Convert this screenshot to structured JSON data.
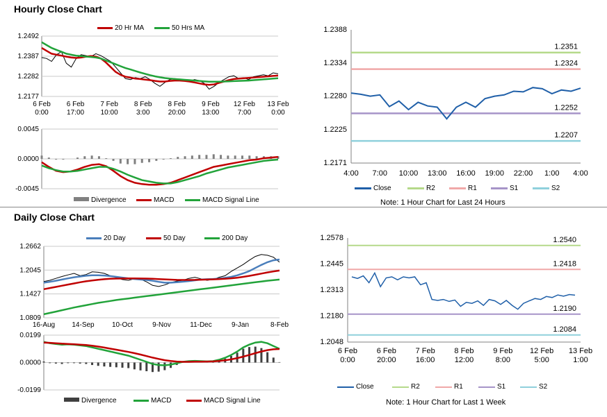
{
  "sections": {
    "hourly_title": "Hourly Close Chart",
    "daily_title": "Daily Close Chart"
  },
  "chart_data": [
    {
      "id": "hourly_price",
      "type": "line",
      "legend": [
        "20 Hr MA",
        "50 Hrs MA"
      ],
      "legend_colors": [
        "#c00000",
        "#22a33a"
      ],
      "yticks": [
        "1.2492",
        "1.2387",
        "1.2282",
        "1.2177"
      ],
      "ylim": [
        1.2177,
        1.2492
      ],
      "xticks": [
        [
          "6 Feb",
          "0:00"
        ],
        [
          "6 Feb",
          "17:00"
        ],
        [
          "7 Feb",
          "10:00"
        ],
        [
          "8 Feb",
          "3:00"
        ],
        [
          "8 Feb",
          "20:00"
        ],
        [
          "9 Feb",
          "13:00"
        ],
        [
          "12 Feb",
          "7:00"
        ],
        [
          "13 Feb",
          "0:00"
        ]
      ],
      "series": [
        {
          "name": "Close",
          "color": "#000000",
          "values": [
            1.238,
            1.2375,
            1.236,
            1.2395,
            1.241,
            1.235,
            1.233,
            1.2375,
            1.2395,
            1.239,
            1.2385,
            1.24,
            1.239,
            1.2375,
            1.236,
            1.233,
            1.23,
            1.227,
            1.2265,
            1.2275,
            1.227,
            1.228,
            1.2265,
            1.2245,
            1.223,
            1.225,
            1.2265,
            1.227,
            1.2265,
            1.226,
            1.2255,
            1.2265,
            1.226,
            1.2245,
            1.2215,
            1.223,
            1.225,
            1.2265,
            1.228,
            1.2285,
            1.227,
            1.2275,
            1.2265,
            1.228,
            1.2285,
            1.229,
            1.2285,
            1.23,
            1.2295
          ]
        },
        {
          "name": "20 Hr MA",
          "color": "#c00000",
          "values": [
            1.243,
            1.2415,
            1.24,
            1.2395,
            1.239,
            1.2385,
            1.238,
            1.2378,
            1.238,
            1.2385,
            1.2388,
            1.2385,
            1.2375,
            1.2355,
            1.233,
            1.2305,
            1.229,
            1.228,
            1.2275,
            1.227,
            1.2268,
            1.2265,
            1.2262,
            1.2258,
            1.2255,
            1.2255,
            1.2258,
            1.226,
            1.226,
            1.2258,
            1.2255,
            1.225,
            1.2245,
            1.224,
            1.2238,
            1.224,
            1.2248,
            1.2255,
            1.2262,
            1.2268,
            1.227,
            1.2272,
            1.2274,
            1.2276,
            1.2278,
            1.228,
            1.2282,
            1.2284,
            1.2286
          ]
        },
        {
          "name": "50 Hrs MA",
          "color": "#22a33a",
          "values": [
            1.246,
            1.2445,
            1.243,
            1.242,
            1.241,
            1.24,
            1.2395,
            1.239,
            1.2388,
            1.2385,
            1.2383,
            1.238,
            1.2375,
            1.2365,
            1.2355,
            1.2345,
            1.2335,
            1.2325,
            1.2318,
            1.231,
            1.2302,
            1.2295,
            1.2288,
            1.2282,
            1.2277,
            1.2273,
            1.227,
            1.2268,
            1.2266,
            1.2264,
            1.2262,
            1.226,
            1.2258,
            1.2256,
            1.2254,
            1.2254,
            1.2254,
            1.2255,
            1.2256,
            1.2257,
            1.2258,
            1.2259,
            1.226,
            1.2262,
            1.2264,
            1.2266,
            1.2268,
            1.227,
            1.2272
          ]
        }
      ]
    },
    {
      "id": "hourly_macd",
      "type": "line",
      "legend": [
        "Divergence",
        "MACD",
        "MACD Signal Line"
      ],
      "legend_colors": [
        "#808080",
        "#c00000",
        "#22a33a"
      ],
      "yticks": [
        "0.0045",
        "0.0000",
        "-0.0045"
      ],
      "ylim": [
        -0.0045,
        0.0045
      ],
      "series": [
        {
          "name": "MACD",
          "color": "#c00000",
          "values": [
            -0.0005,
            -0.0012,
            -0.0018,
            -0.002,
            -0.0019,
            -0.0016,
            -0.0012,
            -0.0009,
            -0.0008,
            -0.0011,
            -0.0018,
            -0.0026,
            -0.0032,
            -0.0036,
            -0.0038,
            -0.0039,
            -0.0039,
            -0.0038,
            -0.0036,
            -0.0032,
            -0.0028,
            -0.0024,
            -0.002,
            -0.0016,
            -0.0012,
            -0.001,
            -0.0008,
            -0.0006,
            -0.0004,
            -0.0002,
            -0.0001,
            0.0001,
            0.0002,
            0.0003
          ]
        },
        {
          "name": "MACD Signal Line",
          "color": "#22a33a",
          "values": [
            -0.001,
            -0.0014,
            -0.0017,
            -0.0019,
            -0.0019,
            -0.0018,
            -0.0016,
            -0.0014,
            -0.0012,
            -0.0012,
            -0.0015,
            -0.0019,
            -0.0024,
            -0.0028,
            -0.0032,
            -0.0034,
            -0.0036,
            -0.0037,
            -0.0037,
            -0.0035,
            -0.0032,
            -0.0029,
            -0.0026,
            -0.0022,
            -0.0019,
            -0.0016,
            -0.0013,
            -0.0011,
            -0.0009,
            -0.0007,
            -0.0005,
            -0.0003,
            -0.0002,
            -0.0001
          ]
        }
      ]
    },
    {
      "id": "hourly_24h",
      "type": "line",
      "yticks": [
        "1.2388",
        "1.2334",
        "1.2280",
        "1.2225",
        "1.2171"
      ],
      "ylim": [
        1.2171,
        1.2388
      ],
      "xticks": [
        "4:00",
        "7:00",
        "10:00",
        "13:00",
        "16:00",
        "19:00",
        "22:00",
        "1:00",
        "4:00"
      ],
      "levels": [
        {
          "name": "R2",
          "value": 1.2351,
          "label": "1.2351",
          "color": "#b5d98a"
        },
        {
          "name": "R1",
          "value": 1.2324,
          "label": "1.2324",
          "color": "#f0a8a8"
        },
        {
          "name": "S1",
          "value": 1.2252,
          "label": "1.2252",
          "color": "#a694c8"
        },
        {
          "name": "S2",
          "value": 1.2207,
          "label": "1.2207",
          "color": "#8fd0dc"
        }
      ],
      "series": [
        {
          "name": "Close",
          "color": "#1f5fa8",
          "values": [
            1.2285,
            1.2283,
            1.228,
            1.2282,
            1.2263,
            1.2272,
            1.2258,
            1.227,
            1.2264,
            1.2262,
            1.2243,
            1.2262,
            1.227,
            1.2262,
            1.2276,
            1.228,
            1.2282,
            1.2288,
            1.2287,
            1.2294,
            1.2292,
            1.2284,
            1.229,
            1.2288,
            1.2293
          ]
        }
      ],
      "legend": [
        "Close",
        "R2",
        "R1",
        "S1",
        "S2"
      ],
      "note": "Note: 1 Hour Chart for Last 24 Hours"
    },
    {
      "id": "daily_price",
      "type": "line",
      "legend": [
        "20 Day",
        "50 Day",
        "200 Day"
      ],
      "legend_colors": [
        "#4a7ebb",
        "#c00000",
        "#22a33a"
      ],
      "yticks": [
        "1.2662",
        "1.2045",
        "1.1427",
        "1.0809"
      ],
      "ylim": [
        1.0809,
        1.2662
      ],
      "xticks": [
        "16-Aug",
        "14-Sep",
        "10-Oct",
        "9-Nov",
        "11-Dec",
        "9-Jan",
        "8-Feb"
      ],
      "series": [
        {
          "name": "Close",
          "color": "#000000",
          "values": [
            1.175,
            1.178,
            1.183,
            1.188,
            1.192,
            1.196,
            1.19,
            1.193,
            1.2,
            1.199,
            1.196,
            1.19,
            1.185,
            1.18,
            1.178,
            1.182,
            1.181,
            1.174,
            1.165,
            1.162,
            1.166,
            1.172,
            1.176,
            1.178,
            1.183,
            1.186,
            1.182,
            1.178,
            1.18,
            1.186,
            1.19,
            1.201,
            1.21,
            1.219,
            1.23,
            1.24,
            1.245,
            1.243,
            1.238,
            1.225
          ]
        },
        {
          "name": "20 Day",
          "color": "#4a7ebb",
          "values": [
            1.172,
            1.174,
            1.177,
            1.18,
            1.183,
            1.186,
            1.188,
            1.19,
            1.191,
            1.191,
            1.1905,
            1.189,
            1.187,
            1.185,
            1.183,
            1.1815,
            1.18,
            1.179,
            1.177,
            1.174,
            1.172,
            1.172,
            1.173,
            1.1745,
            1.176,
            1.178,
            1.18,
            1.181,
            1.1815,
            1.1825,
            1.1845,
            1.187,
            1.191,
            1.196,
            1.202,
            1.21,
            1.218,
            1.225,
            1.23,
            1.232
          ]
        },
        {
          "name": "50 Day",
          "color": "#c00000",
          "values": [
            1.155,
            1.158,
            1.161,
            1.164,
            1.167,
            1.17,
            1.173,
            1.1755,
            1.1775,
            1.1795,
            1.181,
            1.182,
            1.1825,
            1.1828,
            1.183,
            1.183,
            1.1828,
            1.1825,
            1.182,
            1.1812,
            1.1805,
            1.1798,
            1.1792,
            1.179,
            1.179,
            1.1792,
            1.1796,
            1.18,
            1.1806,
            1.1812,
            1.182,
            1.1832,
            1.1848,
            1.187,
            1.1895,
            1.1925,
            1.1955,
            1.1985,
            1.201,
            1.2035
          ]
        },
        {
          "name": "200 Day",
          "color": "#22a33a",
          "values": [
            1.09,
            1.0935,
            1.097,
            1.1005,
            1.104,
            1.1075,
            1.1105,
            1.1135,
            1.1165,
            1.1195,
            1.122,
            1.1245,
            1.127,
            1.129,
            1.131,
            1.133,
            1.135,
            1.137,
            1.139,
            1.141,
            1.143,
            1.145,
            1.147,
            1.149,
            1.151,
            1.153,
            1.155,
            1.157,
            1.159,
            1.161,
            1.163,
            1.165,
            1.167,
            1.169,
            1.171,
            1.173,
            1.175,
            1.177,
            1.1785,
            1.18
          ]
        }
      ]
    },
    {
      "id": "daily_macd",
      "type": "line",
      "legend": [
        "Divergence",
        "MACD",
        "MACD Signal Line"
      ],
      "legend_colors": [
        "#404040",
        "#22a33a",
        "#c00000"
      ],
      "yticks": [
        "0.0199",
        "0.0000",
        "-0.0199"
      ],
      "ylim": [
        -0.0199,
        0.0199
      ],
      "series": [
        {
          "name": "MACD",
          "color": "#22a33a",
          "values": [
            0.015,
            0.014,
            0.0135,
            0.013,
            0.0132,
            0.013,
            0.0125,
            0.012,
            0.011,
            0.01,
            0.009,
            0.008,
            0.007,
            0.006,
            0.005,
            0.0035,
            0.002,
            0.0005,
            -0.001,
            -0.0018,
            -0.002,
            -0.0015,
            -0.0005,
            0.0005,
            0.001,
            0.0012,
            0.001,
            0.0008,
            0.001,
            0.002,
            0.0035,
            0.0055,
            0.008,
            0.011,
            0.013,
            0.0145,
            0.015,
            0.014,
            0.012,
            0.01
          ]
        },
        {
          "name": "MACD Signal Line",
          "color": "#c00000",
          "values": [
            0.0145,
            0.0143,
            0.014,
            0.0137,
            0.0135,
            0.0133,
            0.013,
            0.0127,
            0.0122,
            0.0116,
            0.0109,
            0.0101,
            0.0093,
            0.0085,
            0.0077,
            0.0068,
            0.0058,
            0.0047,
            0.0036,
            0.0026,
            0.0017,
            0.0011,
            0.0007,
            0.0005,
            0.0005,
            0.0006,
            0.0006,
            0.0007,
            0.0008,
            0.0011,
            0.0016,
            0.0023,
            0.0032,
            0.0043,
            0.0055,
            0.0068,
            0.008,
            0.009,
            0.0096,
            0.0098
          ]
        }
      ]
    },
    {
      "id": "daily_week",
      "type": "line",
      "yticks": [
        "1.2578",
        "1.2445",
        "1.2313",
        "1.2180",
        "1.2048"
      ],
      "ylim": [
        1.2048,
        1.2578
      ],
      "xticks": [
        [
          "6 Feb",
          "0:00"
        ],
        [
          "6 Feb",
          "20:00"
        ],
        [
          "7 Feb",
          "16:00"
        ],
        [
          "8 Feb",
          "12:00"
        ],
        [
          "9 Feb",
          "8:00"
        ],
        [
          "12 Feb",
          "5:00"
        ],
        [
          "13 Feb",
          "1:00"
        ]
      ],
      "levels": [
        {
          "name": "R2",
          "value": 1.254,
          "label": "1.2540",
          "color": "#b5d98a"
        },
        {
          "name": "R1",
          "value": 1.2418,
          "label": "1.2418",
          "color": "#f0a8a8"
        },
        {
          "name": "S1",
          "value": 1.219,
          "label": "1.2190",
          "color": "#a694c8"
        },
        {
          "name": "S2",
          "value": 1.2084,
          "label": "1.2084",
          "color": "#8fd0dc"
        }
      ],
      "series": [
        {
          "name": "Close",
          "color": "#1f5fa8",
          "values": [
            1.238,
            1.2372,
            1.2385,
            1.235,
            1.24,
            1.233,
            1.2375,
            1.238,
            1.2365,
            1.238,
            1.2375,
            1.238,
            1.234,
            1.235,
            1.2265,
            1.226,
            1.2265,
            1.2255,
            1.2262,
            1.223,
            1.225,
            1.2245,
            1.2258,
            1.2235,
            1.2265,
            1.2258,
            1.224,
            1.226,
            1.2235,
            1.2215,
            1.2245,
            1.2258,
            1.227,
            1.2265,
            1.228,
            1.2275,
            1.2288,
            1.2282,
            1.229,
            1.2287
          ]
        }
      ],
      "legend": [
        "Close",
        "R2",
        "R1",
        "S1",
        "S2"
      ],
      "note": "Note: 1 Hour Chart for Last 1 Week"
    }
  ]
}
